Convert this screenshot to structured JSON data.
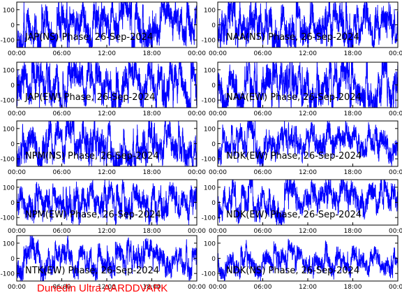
{
  "chart_data": [
    {
      "type": "line",
      "title": "JAP(NS) Phase, 26-Sep-2024",
      "x_ticks": [
        "00:00",
        "06:00",
        "12:00",
        "18:00",
        "00:00"
      ],
      "y_ticks": [
        "100",
        "0",
        "-100"
      ],
      "ylim": [
        -150,
        150
      ],
      "xlim_hours": [
        0,
        24
      ],
      "series_color": "#0000ff",
      "series": [
        {
          "seed": 11,
          "spread": 0.95,
          "offset": 0
        }
      ]
    },
    {
      "type": "line",
      "title": "NAA(NS) Phase, 26-Sep-2024",
      "x_ticks": [
        "00:00",
        "06:00",
        "12:00",
        "18:00",
        "00:00"
      ],
      "y_ticks": [
        "100",
        "0",
        "-100"
      ],
      "ylim": [
        -150,
        150
      ],
      "xlim_hours": [
        0,
        24
      ],
      "series_color": "#0000ff",
      "series": [
        {
          "seed": 23,
          "spread": 0.95,
          "offset": 0
        }
      ]
    },
    {
      "type": "line",
      "title": "JAP(EW) Phase, 26-Sep-2024",
      "x_ticks": [
        "00:00",
        "06:00",
        "12:00",
        "18:00",
        "00:00"
      ],
      "y_ticks": [
        "100",
        "0",
        "-100"
      ],
      "ylim": [
        -150,
        150
      ],
      "xlim_hours": [
        0,
        24
      ],
      "series_color": "#0000ff",
      "series": [
        {
          "seed": 37,
          "spread": 0.95,
          "offset": 0
        }
      ]
    },
    {
      "type": "line",
      "title": "NAA(EW) Phase, 26-Sep-2024",
      "x_ticks": [
        "00:00",
        "06:00",
        "12:00",
        "18:00",
        "00:00"
      ],
      "y_ticks": [
        "100",
        "0",
        "-100"
      ],
      "ylim": [
        -150,
        150
      ],
      "xlim_hours": [
        0,
        24
      ],
      "series_color": "#0000ff",
      "series": [
        {
          "seed": 41,
          "spread": 0.95,
          "offset": 0
        }
      ]
    },
    {
      "type": "line",
      "title": "NPM(NS) Phase, 26-Sep-2024",
      "x_ticks": [
        "00:00",
        "06:00",
        "12:00",
        "18:00",
        "00:00"
      ],
      "y_ticks": [
        "100",
        "0",
        "-100"
      ],
      "ylim": [
        -150,
        150
      ],
      "xlim_hours": [
        0,
        24
      ],
      "series_color": "#0000ff",
      "series": [
        {
          "seed": 53,
          "spread": 0.9,
          "offset": 0
        }
      ]
    },
    {
      "type": "line",
      "title": "NDK(EW) Phase, 26-Sep-2024",
      "x_ticks": [
        "00:00",
        "06:00",
        "12:00",
        "18:00",
        "00:00"
      ],
      "y_ticks": [
        "100",
        "0",
        "-100"
      ],
      "ylim": [
        -150,
        150
      ],
      "xlim_hours": [
        0,
        24
      ],
      "series_color": "#0000ff",
      "series": [
        {
          "seed": 67,
          "spread": 0.7,
          "offset": 10
        }
      ]
    },
    {
      "type": "line",
      "title": "NPM(EW) Phase, 26-Sep-2024",
      "x_ticks": [
        "00:00",
        "06:00",
        "12:00",
        "18:00",
        "00:00"
      ],
      "y_ticks": [
        "100",
        "0",
        "-100"
      ],
      "ylim": [
        -150,
        150
      ],
      "xlim_hours": [
        0,
        24
      ],
      "series_color": "#0000ff",
      "series": [
        {
          "seed": 71,
          "spread": 0.75,
          "offset": 0
        }
      ]
    },
    {
      "type": "line",
      "title": "NDK(EW) Phase, 26-Sep-2024",
      "x_ticks": [
        "00:00",
        "06:00",
        "12:00",
        "18:00",
        "00:00"
      ],
      "y_ticks": [
        "100",
        "0",
        "-100"
      ],
      "ylim": [
        -150,
        150
      ],
      "xlim_hours": [
        0,
        24
      ],
      "series_color": "#0000ff",
      "series": [
        {
          "seed": 83,
          "spread": 0.7,
          "offset": 10
        }
      ]
    },
    {
      "type": "line",
      "title": "NTK(EW) Phase, 26-Sep-2024",
      "x_ticks": [
        "00:00",
        "06:00",
        "12:00",
        "18:00",
        "00:00"
      ],
      "y_ticks": [
        "100",
        "0",
        "-100"
      ],
      "ylim": [
        -150,
        150
      ],
      "xlim_hours": [
        0,
        24
      ],
      "series_color": "#0000ff",
      "series": [
        {
          "seed": 97,
          "spread": 0.65,
          "offset": 0
        }
      ]
    },
    {
      "type": "line",
      "title": "NDK(NS) Phase, 26-Sep-2024",
      "x_ticks": [
        "00:00",
        "06:00",
        "12:00",
        "18:00",
        "00:00"
      ],
      "y_ticks": [
        "100",
        "0",
        "-100"
      ],
      "ylim": [
        -150,
        150
      ],
      "xlim_hours": [
        0,
        24
      ],
      "series_color": "#0000ff",
      "series": [
        {
          "seed": 101,
          "spread": 0.55,
          "offset": -10
        }
      ]
    }
  ],
  "footer": {
    "text": "Dunedin Ultra AARDDVARK",
    "color": "#ff0000"
  }
}
